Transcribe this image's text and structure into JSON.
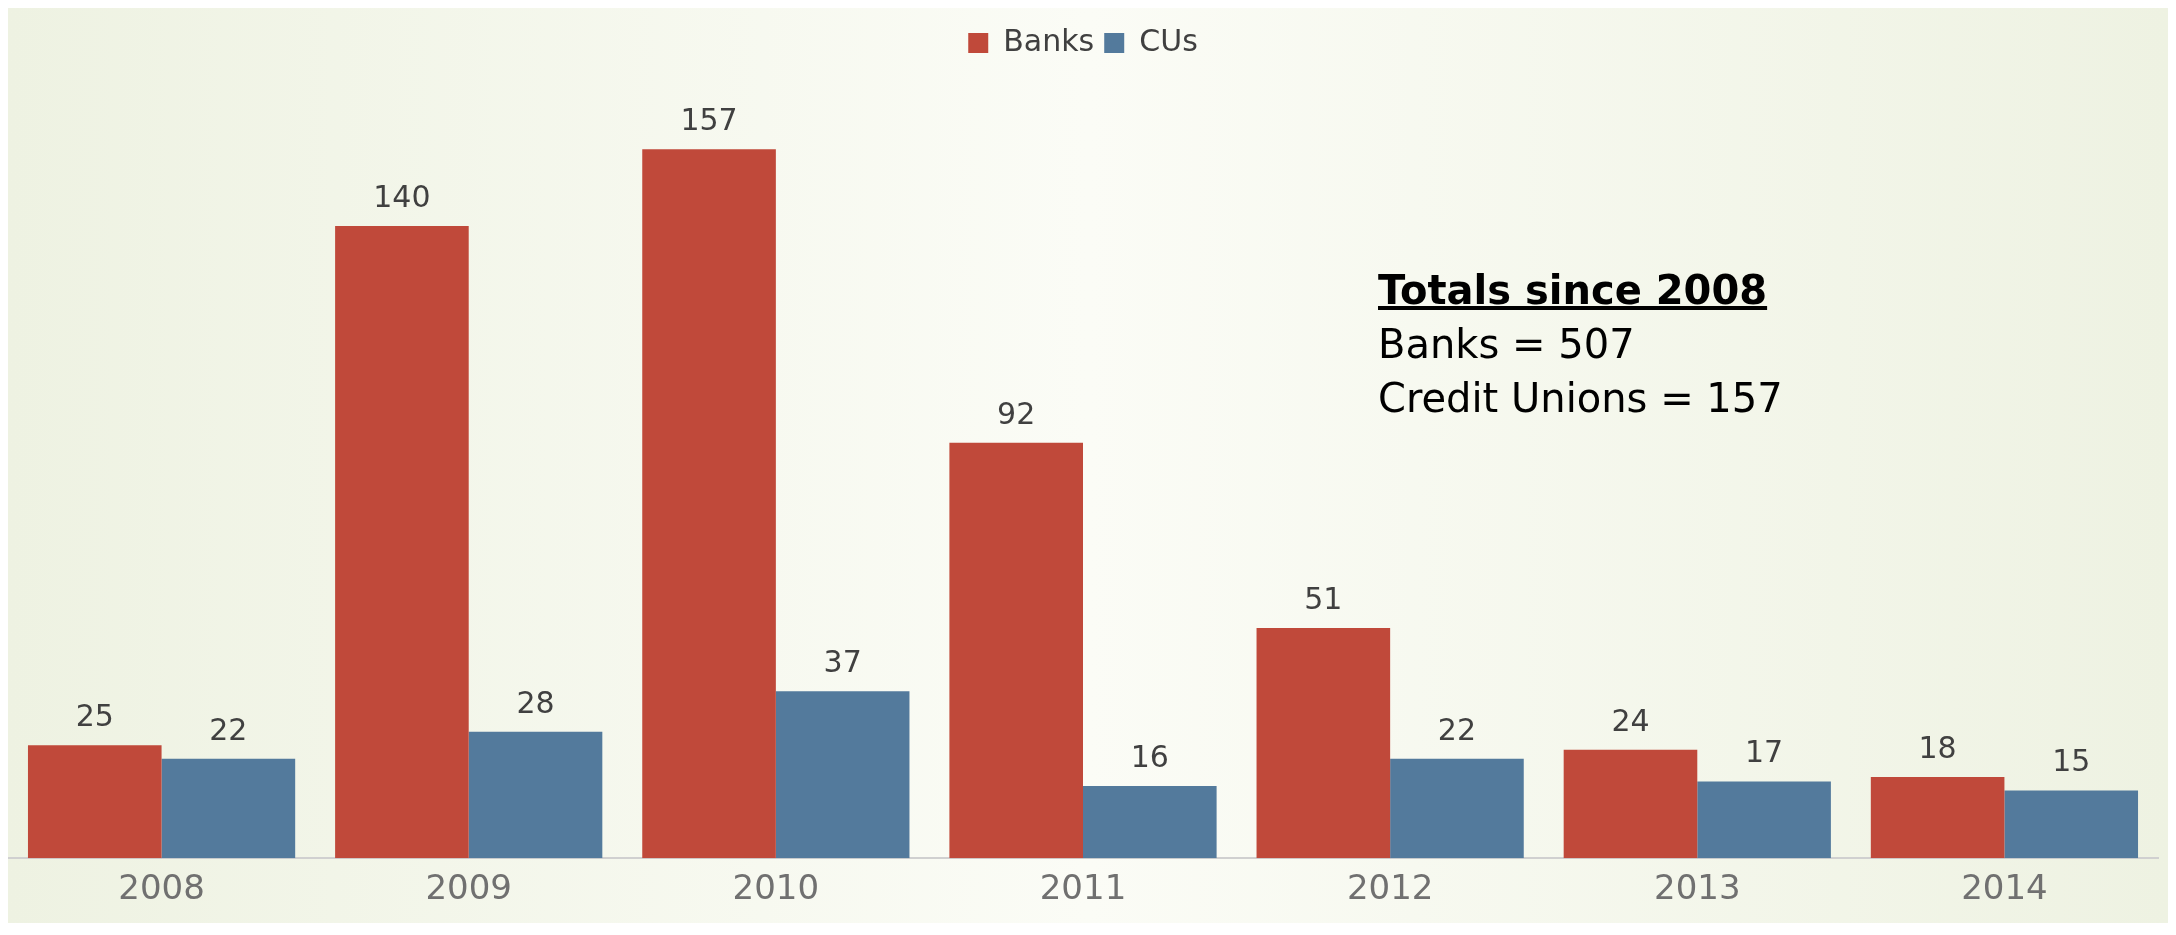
{
  "chart_data": {
    "type": "bar",
    "categories": [
      "2008",
      "2009",
      "2010",
      "2011",
      "2012",
      "2013",
      "2014"
    ],
    "series": [
      {
        "name": "Banks",
        "color": "#c0493a",
        "values": [
          25,
          140,
          157,
          92,
          51,
          24,
          18
        ]
      },
      {
        "name": "CUs",
        "color": "#537a9c",
        "values": [
          22,
          28,
          37,
          16,
          22,
          17,
          15
        ]
      }
    ],
    "data_labels": true,
    "legend": "top",
    "grid": false,
    "annotations": [
      "Totals since 2008",
      "Banks = 507",
      "Credit Unions = 157"
    ]
  }
}
